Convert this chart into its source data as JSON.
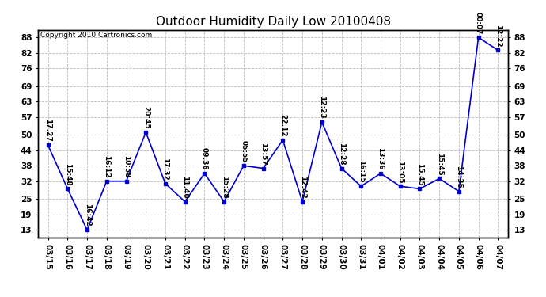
{
  "title": "Outdoor Humidity Daily Low 20100408",
  "copyright": "Copyright 2010 Cartronics.com",
  "dates": [
    "03/15",
    "03/16",
    "03/17",
    "03/18",
    "03/19",
    "03/20",
    "03/21",
    "03/22",
    "03/23",
    "03/24",
    "03/25",
    "03/26",
    "03/27",
    "03/28",
    "03/29",
    "03/30",
    "03/31",
    "04/01",
    "04/02",
    "04/03",
    "04/04",
    "04/05",
    "04/06",
    "04/07"
  ],
  "values": [
    46,
    29,
    13,
    32,
    32,
    51,
    31,
    24,
    35,
    24,
    38,
    37,
    48,
    24,
    55,
    37,
    30,
    35,
    30,
    29,
    33,
    28,
    88,
    83
  ],
  "annotations": [
    "17:27",
    "15:48",
    "16:42",
    "16:12",
    "10:58",
    "20:45",
    "17:32",
    "11:40",
    "09:36",
    "15:28",
    "05:55",
    "13:57",
    "22:12",
    "12:42",
    "12:23",
    "12:28",
    "16:15",
    "13:36",
    "13:05",
    "15:45",
    "15:45",
    "14:35",
    "00:07",
    "12:22"
  ],
  "ylim": [
    10,
    91
  ],
  "yticks": [
    13,
    19,
    25,
    32,
    38,
    44,
    50,
    57,
    63,
    69,
    76,
    82,
    88
  ],
  "line_color": "#0000cc",
  "marker_color": "#0000cc",
  "bg_color": "#ffffff",
  "grid_color": "#bbbbbb",
  "title_fontsize": 11,
  "annotation_fontsize": 6.5,
  "copyright_fontsize": 6.5,
  "tick_fontsize": 7.5
}
